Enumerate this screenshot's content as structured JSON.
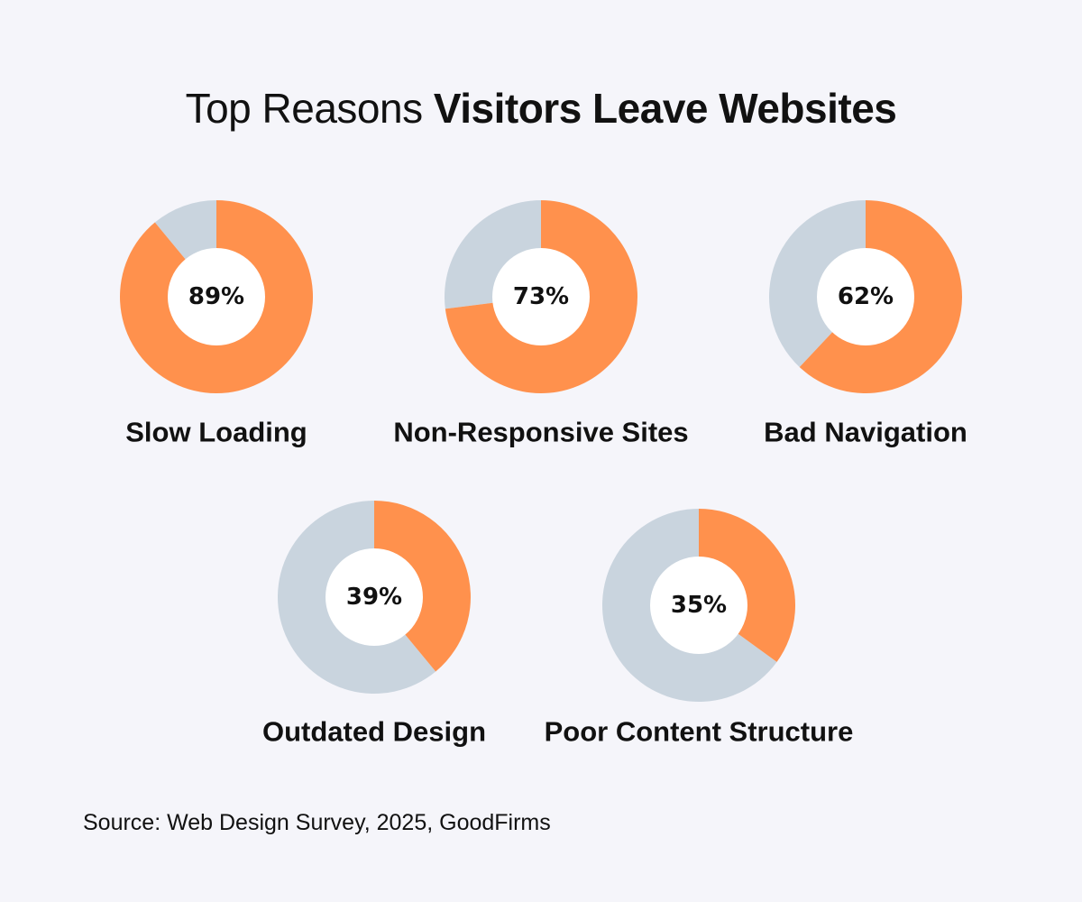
{
  "title": {
    "light": "Top Reasons ",
    "bold": "Visitors Leave Websites"
  },
  "source": "Source: Web Design Survey, 2025, GoodFirms",
  "colors": {
    "background": "#f5f5fa",
    "highlight": "#ff914d",
    "remainder": "#c9d4de",
    "hole": "#ffffff",
    "text": "#111111"
  },
  "chart_data": [
    {
      "type": "pie",
      "label": "Slow Loading",
      "value": 89,
      "display": "89%"
    },
    {
      "type": "pie",
      "label": "Non-Responsive Sites",
      "value": 73,
      "display": "73%"
    },
    {
      "type": "pie",
      "label": "Bad Navigation",
      "value": 62,
      "display": "62%"
    },
    {
      "type": "pie",
      "label": "Outdated Design",
      "value": 39,
      "display": "39%"
    },
    {
      "type": "pie",
      "label": "Poor Content Structure",
      "value": 35,
      "display": "35%"
    }
  ]
}
